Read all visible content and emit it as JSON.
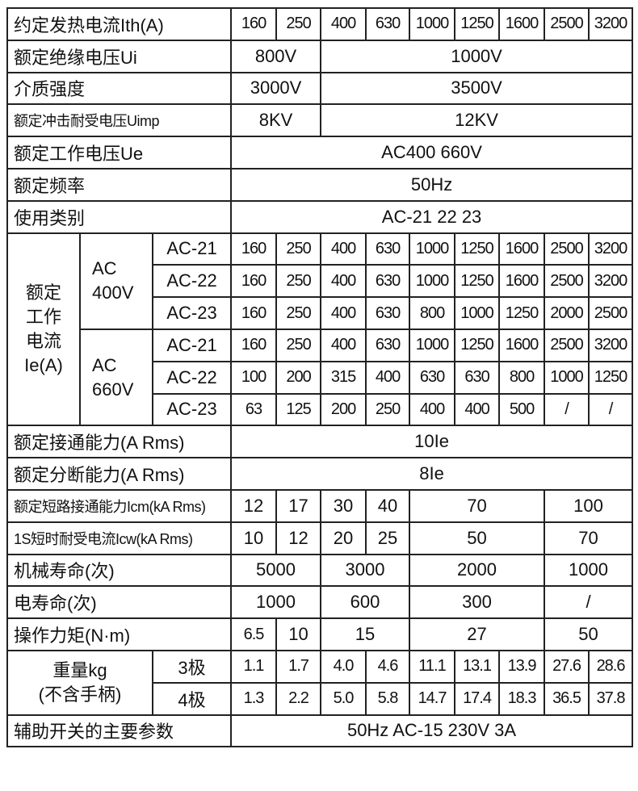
{
  "table": {
    "rows": [
      {
        "cells": [
          {
            "t": "约定发热电流Ith(A)",
            "cs": 3,
            "c": "lbl"
          },
          {
            "t": "160",
            "c": "num"
          },
          {
            "t": "250",
            "c": "num"
          },
          {
            "t": "400",
            "c": "num"
          },
          {
            "t": "630",
            "c": "num"
          },
          {
            "t": "1000",
            "c": "num"
          },
          {
            "t": "1250",
            "c": "num"
          },
          {
            "t": "1600",
            "c": "num"
          },
          {
            "t": "2500",
            "c": "num"
          },
          {
            "t": "3200",
            "c": "num"
          }
        ]
      },
      {
        "cells": [
          {
            "t": "额定绝缘电压Ui",
            "cs": 3,
            "c": "lbl"
          },
          {
            "t": "800V",
            "cs": 2
          },
          {
            "t": "1000V",
            "cs": 7
          }
        ]
      },
      {
        "cells": [
          {
            "t": "介质强度",
            "cs": 3,
            "c": "lbl"
          },
          {
            "t": "3000V",
            "cs": 2
          },
          {
            "t": "3500V",
            "cs": 7
          }
        ]
      },
      {
        "cells": [
          {
            "t": "额定冲击耐受电压Uimp",
            "cs": 3,
            "c": "lbl small"
          },
          {
            "t": "8KV",
            "cs": 2
          },
          {
            "t": "12KV",
            "cs": 7
          }
        ]
      },
      {
        "cells": [
          {
            "t": "额定工作电压Ue",
            "cs": 3,
            "c": "lbl"
          },
          {
            "t": "AC400   660V",
            "cs": 9
          }
        ]
      },
      {
        "cells": [
          {
            "t": "额定频率",
            "cs": 3,
            "c": "lbl"
          },
          {
            "t": "50Hz",
            "cs": 9
          }
        ]
      },
      {
        "cells": [
          {
            "t": "使用类别",
            "cs": 3,
            "c": "lbl"
          },
          {
            "t": "AC-21 22 23",
            "cs": 9
          }
        ]
      },
      {
        "cells": [
          {
            "t": "额定\n工作\n电流\nIe(A)",
            "rs": 6,
            "c": "wrap"
          },
          {
            "t": "AC\n400V",
            "rs": 3,
            "c": "sub"
          },
          {
            "t": "AC-21"
          },
          {
            "t": "160",
            "c": "num"
          },
          {
            "t": "250",
            "c": "num"
          },
          {
            "t": "400",
            "c": "num"
          },
          {
            "t": "630",
            "c": "num"
          },
          {
            "t": "1000",
            "c": "num"
          },
          {
            "t": "1250",
            "c": "num"
          },
          {
            "t": "1600",
            "c": "num"
          },
          {
            "t": "2500",
            "c": "num"
          },
          {
            "t": "3200",
            "c": "num"
          }
        ]
      },
      {
        "cells": [
          {
            "t": "AC-22"
          },
          {
            "t": "160",
            "c": "num"
          },
          {
            "t": "250",
            "c": "num"
          },
          {
            "t": "400",
            "c": "num"
          },
          {
            "t": "630",
            "c": "num"
          },
          {
            "t": "1000",
            "c": "num"
          },
          {
            "t": "1250",
            "c": "num"
          },
          {
            "t": "1600",
            "c": "num"
          },
          {
            "t": "2500",
            "c": "num"
          },
          {
            "t": "3200",
            "c": "num"
          }
        ]
      },
      {
        "cells": [
          {
            "t": "AC-23"
          },
          {
            "t": "160",
            "c": "num"
          },
          {
            "t": "250",
            "c": "num"
          },
          {
            "t": "400",
            "c": "num"
          },
          {
            "t": "630",
            "c": "num"
          },
          {
            "t": "800",
            "c": "num"
          },
          {
            "t": "1000",
            "c": "num"
          },
          {
            "t": "1250",
            "c": "num"
          },
          {
            "t": "2000",
            "c": "num"
          },
          {
            "t": "2500",
            "c": "num"
          }
        ]
      },
      {
        "cells": [
          {
            "t": "AC\n660V",
            "rs": 3,
            "c": "sub"
          },
          {
            "t": "AC-21"
          },
          {
            "t": "160",
            "c": "num"
          },
          {
            "t": "250",
            "c": "num"
          },
          {
            "t": "400",
            "c": "num"
          },
          {
            "t": "630",
            "c": "num"
          },
          {
            "t": "1000",
            "c": "num"
          },
          {
            "t": "1250",
            "c": "num"
          },
          {
            "t": "1600",
            "c": "num"
          },
          {
            "t": "2500",
            "c": "num"
          },
          {
            "t": "3200",
            "c": "num"
          }
        ]
      },
      {
        "cells": [
          {
            "t": "AC-22"
          },
          {
            "t": "100",
            "c": "num"
          },
          {
            "t": "200",
            "c": "num"
          },
          {
            "t": "315",
            "c": "num"
          },
          {
            "t": "400",
            "c": "num"
          },
          {
            "t": "630",
            "c": "num"
          },
          {
            "t": "630",
            "c": "num"
          },
          {
            "t": "800",
            "c": "num"
          },
          {
            "t": "1000",
            "c": "num"
          },
          {
            "t": "1250",
            "c": "num"
          }
        ]
      },
      {
        "cells": [
          {
            "t": "AC-23"
          },
          {
            "t": "63",
            "c": "num"
          },
          {
            "t": "125",
            "c": "num"
          },
          {
            "t": "200",
            "c": "num"
          },
          {
            "t": "250",
            "c": "num"
          },
          {
            "t": "400",
            "c": "num"
          },
          {
            "t": "400",
            "c": "num"
          },
          {
            "t": "500",
            "c": "num"
          },
          {
            "t": "/",
            "c": "num"
          },
          {
            "t": "/",
            "c": "num"
          }
        ]
      },
      {
        "cells": [
          {
            "t": "额定接通能力(A Rms)",
            "cs": 3,
            "c": "lbl"
          },
          {
            "t": "10Ie",
            "cs": 9
          }
        ]
      },
      {
        "cells": [
          {
            "t": "额定分断能力(A Rms)",
            "cs": 3,
            "c": "lbl"
          },
          {
            "t": "8Ie",
            "cs": 9
          }
        ]
      },
      {
        "cells": [
          {
            "t": "额定短路接通能力Icm(kA Rms)",
            "cs": 3,
            "c": "lbl small"
          },
          {
            "t": "12"
          },
          {
            "t": "17"
          },
          {
            "t": "30"
          },
          {
            "t": "40"
          },
          {
            "t": "70",
            "cs": 3
          },
          {
            "t": "100",
            "cs": 2
          }
        ]
      },
      {
        "cells": [
          {
            "t": "1S短时耐受电流Icw(kA Rms)",
            "cs": 3,
            "c": "lbl small"
          },
          {
            "t": "10"
          },
          {
            "t": "12"
          },
          {
            "t": "20"
          },
          {
            "t": "25"
          },
          {
            "t": "50",
            "cs": 3
          },
          {
            "t": "70",
            "cs": 2
          }
        ]
      },
      {
        "cells": [
          {
            "t": "机械寿命(次)",
            "cs": 3,
            "c": "lbl"
          },
          {
            "t": "5000",
            "cs": 2
          },
          {
            "t": "3000",
            "cs": 2
          },
          {
            "t": "2000",
            "cs": 3
          },
          {
            "t": "1000",
            "cs": 2
          }
        ]
      },
      {
        "cells": [
          {
            "t": "电寿命(次)",
            "cs": 3,
            "c": "lbl"
          },
          {
            "t": "1000",
            "cs": 2
          },
          {
            "t": "600",
            "cs": 2
          },
          {
            "t": "300",
            "cs": 3
          },
          {
            "t": "/",
            "cs": 2
          }
        ]
      },
      {
        "cells": [
          {
            "t": "操作力矩(N·m)",
            "cs": 3,
            "c": "lbl"
          },
          {
            "t": "6.5",
            "c": "num"
          },
          {
            "t": "10"
          },
          {
            "t": "15",
            "cs": 2
          },
          {
            "t": "27",
            "cs": 3
          },
          {
            "t": "50",
            "cs": 2
          }
        ]
      },
      {
        "cells": [
          {
            "t": "重量kg\n(不含手柄)",
            "cs": 2,
            "rs": 2,
            "c": "wrap"
          },
          {
            "t": "3极"
          },
          {
            "t": "1.1",
            "c": "num"
          },
          {
            "t": "1.7",
            "c": "num"
          },
          {
            "t": "4.0",
            "c": "num"
          },
          {
            "t": "4.6",
            "c": "num"
          },
          {
            "t": "11.1",
            "c": "num"
          },
          {
            "t": "13.1",
            "c": "num"
          },
          {
            "t": "13.9",
            "c": "num"
          },
          {
            "t": "27.6",
            "c": "num"
          },
          {
            "t": "28.6",
            "c": "num"
          }
        ]
      },
      {
        "cells": [
          {
            "t": "4极"
          },
          {
            "t": "1.3",
            "c": "num"
          },
          {
            "t": "2.2",
            "c": "num"
          },
          {
            "t": "5.0",
            "c": "num"
          },
          {
            "t": "5.8",
            "c": "num"
          },
          {
            "t": "14.7",
            "c": "num"
          },
          {
            "t": "17.4",
            "c": "num"
          },
          {
            "t": "18.3",
            "c": "num"
          },
          {
            "t": "36.5",
            "c": "num"
          },
          {
            "t": "37.8",
            "c": "num"
          }
        ]
      },
      {
        "cells": [
          {
            "t": "辅助开关的主要参数",
            "cs": 3,
            "c": "lbl"
          },
          {
            "t": "50Hz   AC-15   230V   3A",
            "cs": 9
          }
        ]
      }
    ]
  }
}
